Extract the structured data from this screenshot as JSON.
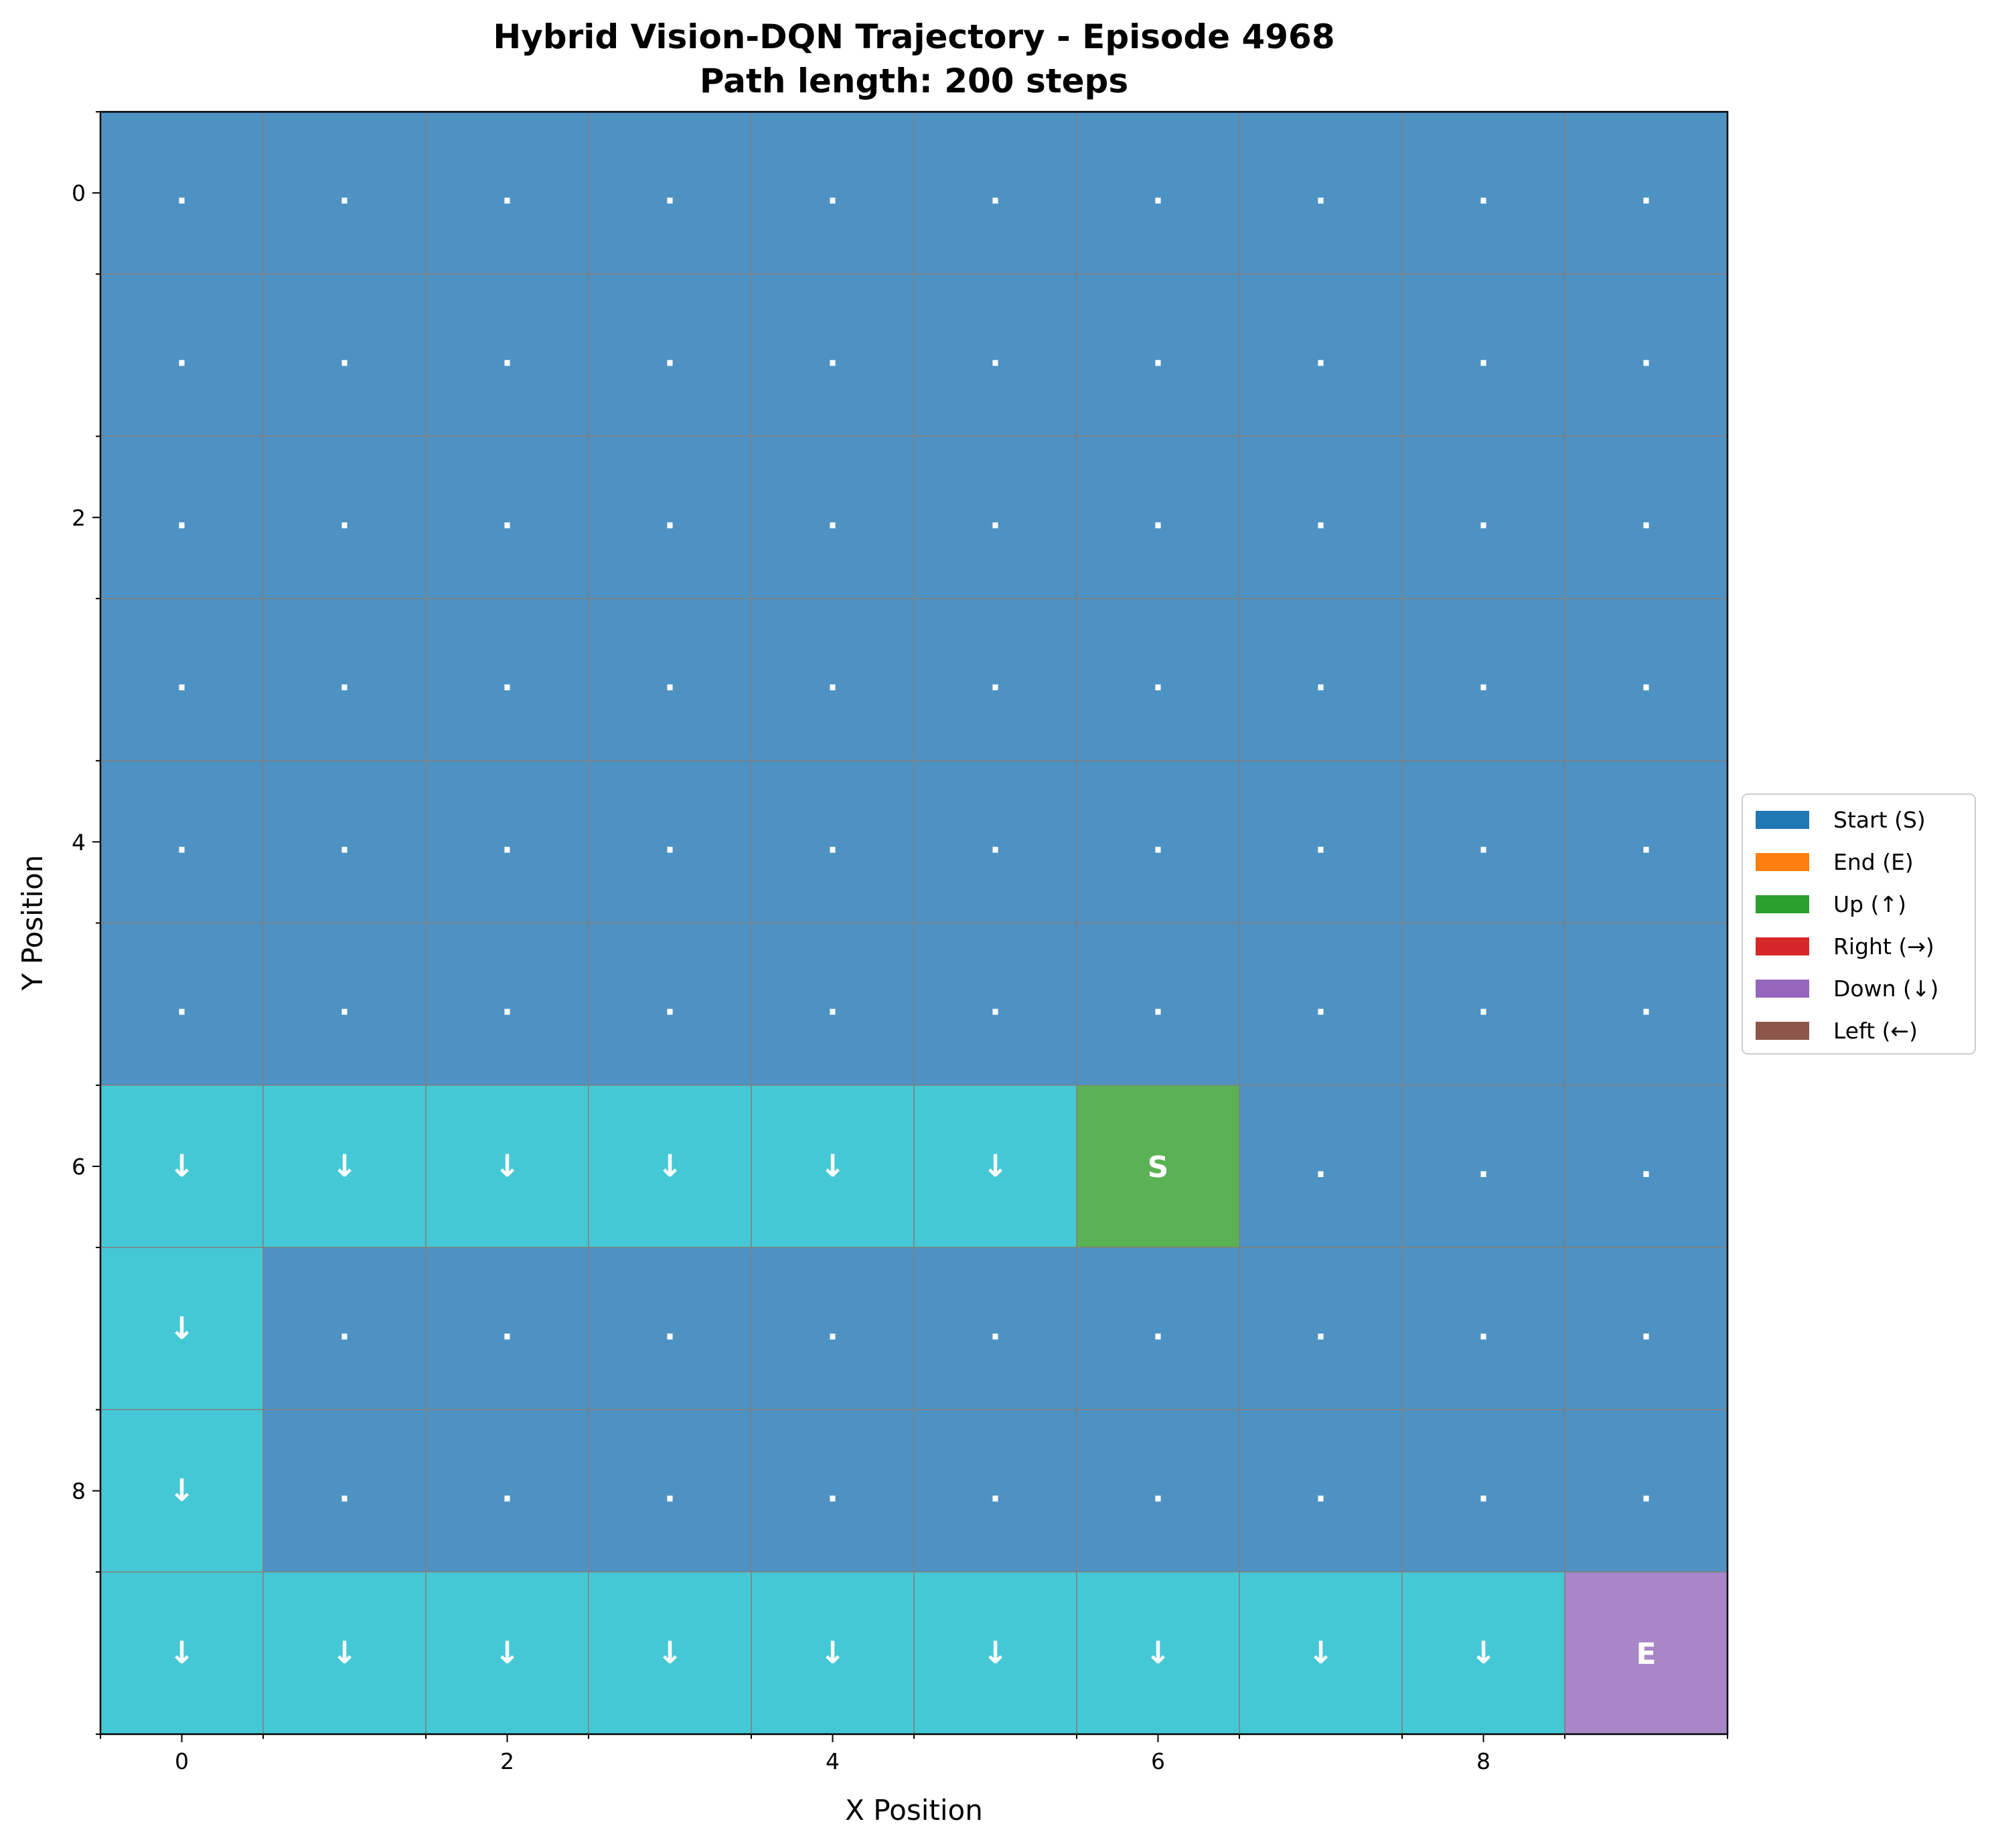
{
  "chart_data": {
    "type": "heatmap",
    "title": "Hybrid Vision-DQN Trajectory - Episode 4968",
    "subtitle": "Path length: 200 steps",
    "xlabel": "X Position",
    "ylabel": "Y Position",
    "xlim": [
      -0.5,
      9.5
    ],
    "ylim": [
      9.5,
      -0.5
    ],
    "x_ticks": [
      0,
      2,
      4,
      6,
      8
    ],
    "y_ticks": [
      0,
      2,
      4,
      6,
      8
    ],
    "grid": true,
    "colors": {
      "empty": "#4d92c3",
      "path": "#45c8d5",
      "start": "#5ab254",
      "end": "#a886c8",
      "grid_line": "#808080"
    },
    "cell_types": [
      "..........",
      "..........",
      "..........",
      "..........",
      "..........",
      "..........",
      "PPPPPPS...",
      "P.........",
      "P.........",
      "PPPPPPPPPE"
    ],
    "symbols": {
      "empty": ".",
      "path": "↓",
      "start": "S",
      "end": "E"
    },
    "legend": {
      "position": "center-right",
      "entries": [
        {
          "label": "Start (S)",
          "color": "#1f77b4"
        },
        {
          "label": "End (E)",
          "color": "#ff7f0e"
        },
        {
          "label": "Up (↑)",
          "color": "#2ca02c"
        },
        {
          "label": "Right (→)",
          "color": "#d62728"
        },
        {
          "label": "Down (↓)",
          "color": "#9467bd"
        },
        {
          "label": "Left (←)",
          "color": "#8c564b"
        }
      ]
    }
  }
}
